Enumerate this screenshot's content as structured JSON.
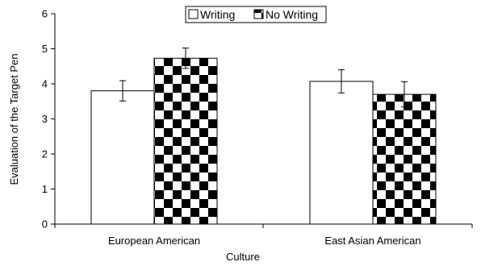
{
  "chart_data": {
    "type": "bar",
    "categories": [
      "European American",
      "East Asian American"
    ],
    "series": [
      {
        "name": "Writing",
        "values": [
          3.8,
          4.07
        ],
        "errors": [
          0.29,
          0.33
        ],
        "pattern": "white"
      },
      {
        "name": "No Writing",
        "values": [
          4.73,
          3.7
        ],
        "errors": [
          0.29,
          0.36
        ],
        "pattern": "diagonal-checker"
      }
    ],
    "xlabel": "Culture",
    "ylabel": "Evaluation of the Target Pen",
    "ylim": [
      0,
      6
    ],
    "yticks": [
      "0",
      "1",
      "2",
      "3",
      "4",
      "5",
      "6"
    ],
    "grid": false,
    "legend_position": "top-center"
  },
  "colors": {
    "bar_fill_writing": "#ffffff",
    "pattern_dark": "#000000",
    "axis": "#000000"
  }
}
